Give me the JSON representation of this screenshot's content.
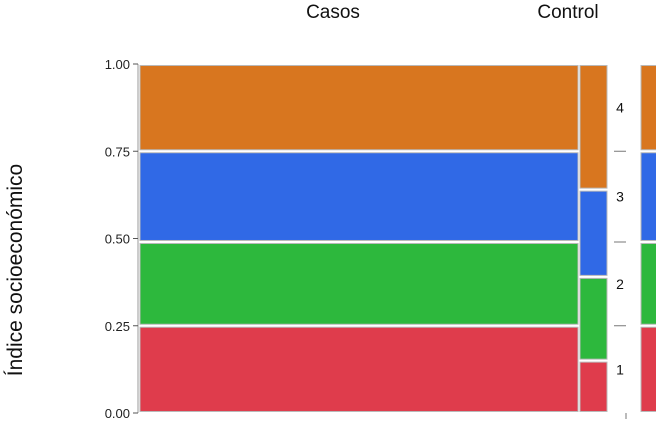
{
  "chart_data": {
    "type": "mosaic",
    "ylabel": "Índice socioeconómico",
    "ylim": [
      0,
      1
    ],
    "yticks": [
      "0.00",
      "0.25",
      "0.50",
      "0.75",
      "1.00"
    ],
    "categories": [
      "Casos",
      "Control"
    ],
    "levels": [
      "1",
      "2",
      "3",
      "4"
    ],
    "level_colors": {
      "1": "#df3c4c",
      "2": "#2db83d",
      "3": "#3069e6",
      "4": "#d8761f"
    },
    "series": [
      {
        "name": "Casos",
        "proportions": [
          0.25,
          0.24,
          0.26,
          0.25
        ]
      },
      {
        "name": "Control",
        "proportions": [
          0.15,
          0.24,
          0.25,
          0.36
        ]
      }
    ],
    "column_widths": [
      0.92,
      0.08
    ],
    "legend_bar_proportions": [
      0.25,
      0.24,
      0.26,
      0.25
    ]
  }
}
